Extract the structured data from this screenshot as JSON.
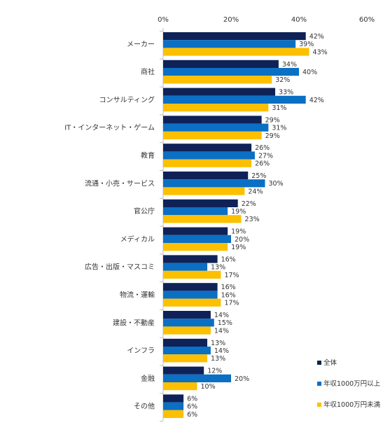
{
  "chart_data": {
    "type": "bar",
    "orientation": "horizontal",
    "categories": [
      "メーカー",
      "商社",
      "コンサルティング",
      "IT・インターネット・ゲーム",
      "教育",
      "流通・小売・サービス",
      "官公庁",
      "メディカル",
      "広告・出版・マスコミ",
      "物流・運輸",
      "建設・不動産",
      "インフラ",
      "金融",
      "その他"
    ],
    "series": [
      {
        "name": "全体",
        "values": [
          42,
          34,
          33,
          29,
          26,
          25,
          22,
          19,
          16,
          16,
          14,
          13,
          12,
          6
        ],
        "color": "#0e2258"
      },
      {
        "name": "年収1000万円以上",
        "values": [
          39,
          40,
          42,
          31,
          27,
          30,
          19,
          20,
          13,
          16,
          15,
          14,
          20,
          6
        ],
        "color": "#0b6fc4"
      },
      {
        "name": "年収1000万円未満",
        "values": [
          43,
          32,
          31,
          29,
          26,
          24,
          23,
          19,
          17,
          17,
          14,
          13,
          10,
          6
        ],
        "color": "#fcc000"
      }
    ],
    "xlim": [
      0,
      60
    ],
    "xticks": [
      "0%",
      "20%",
      "40%",
      "60%"
    ],
    "value_suffix": "%",
    "grid": false,
    "legend_position": "bottom-right"
  }
}
